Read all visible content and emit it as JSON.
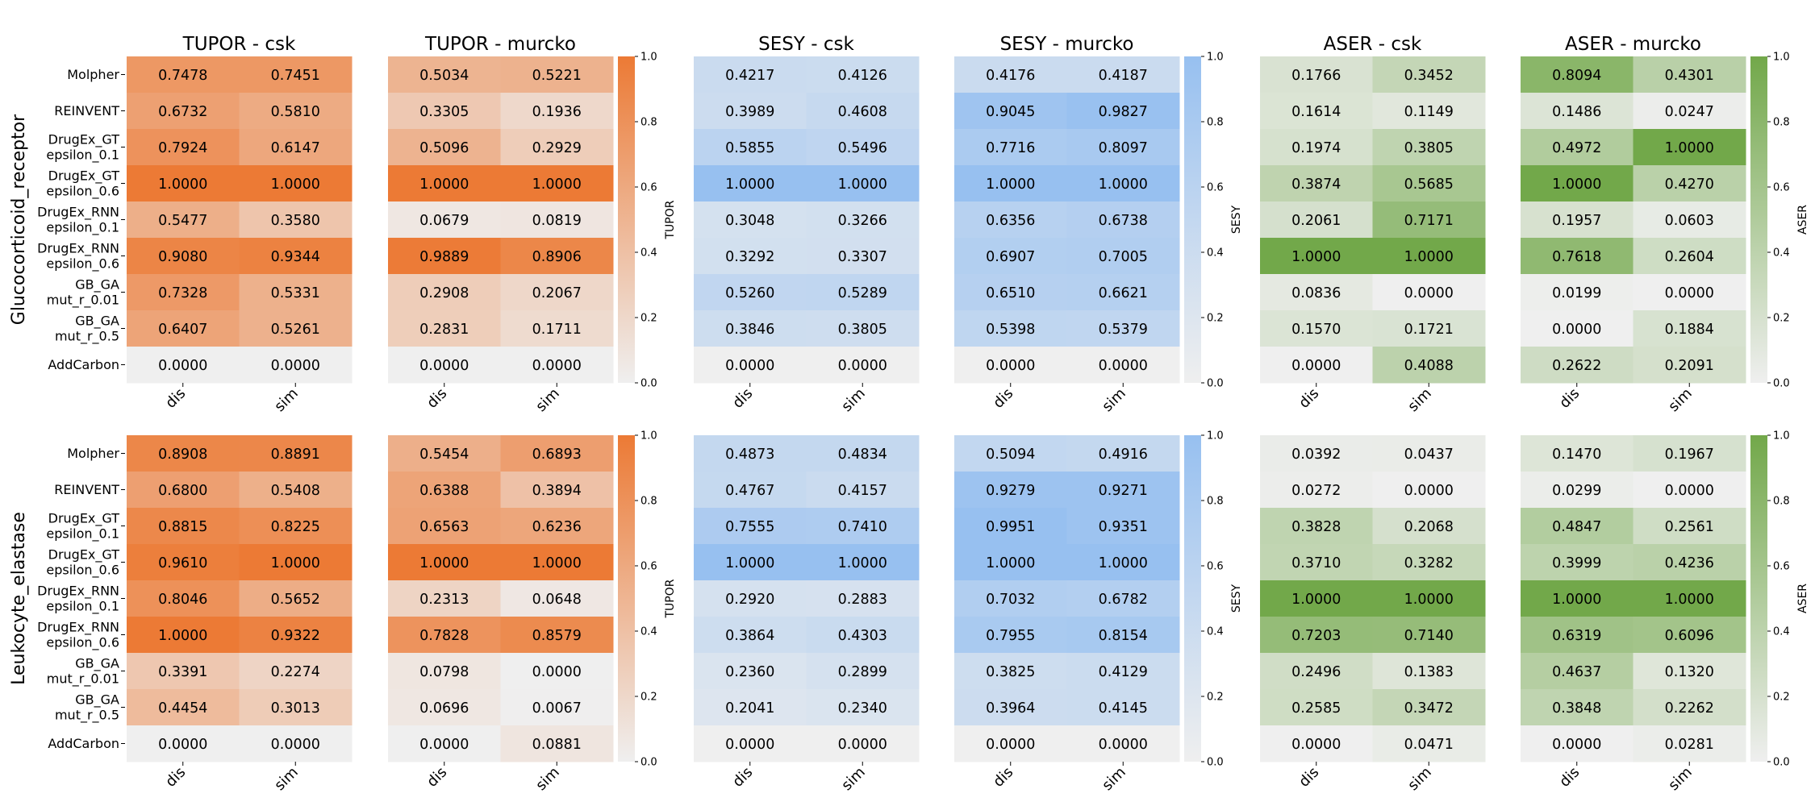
{
  "colors": {
    "low": "#efefef",
    "TUPOR": "#ec7a35",
    "SESY": "#97c0f0",
    "ASER": "#72a84a"
  },
  "chart_data": {
    "type": "heatmap",
    "rows": [
      "Molpher",
      "REINVENT",
      "DrugEx_GT\nepsilon_0.1",
      "DrugEx_GT\nepsilon_0.6",
      "DrugEx_RNN\nepsilon_0.1",
      "DrugEx_RNN\nepsilon_0.6",
      "GB_GA\nmut_r_0.01",
      "GB_GA\nmut_r_0.5",
      "AddCarbon"
    ],
    "columns": [
      "dis",
      "sim"
    ],
    "colorbar_ticks": [
      "0.0",
      "0.2",
      "0.4",
      "0.6",
      "0.8",
      "1.0"
    ],
    "vrange": [
      0,
      1
    ],
    "targets": [
      {
        "name": "Glucocorticoid_receptor",
        "panels": [
          {
            "title": "TUPOR - csk",
            "metric": "TUPOR",
            "values": [
              [
                0.7478,
                0.7451
              ],
              [
                0.6732,
                0.581
              ],
              [
                0.7924,
                0.6147
              ],
              [
                1.0,
                1.0
              ],
              [
                0.5477,
                0.358
              ],
              [
                0.908,
                0.9344
              ],
              [
                0.7328,
                0.5331
              ],
              [
                0.6407,
                0.5261
              ],
              [
                0.0,
                0.0
              ]
            ]
          },
          {
            "title": "TUPOR - murcko",
            "metric": "TUPOR",
            "colorbar_label": "TUPOR",
            "values": [
              [
                0.5034,
                0.5221
              ],
              [
                0.3305,
                0.1936
              ],
              [
                0.5096,
                0.2929
              ],
              [
                1.0,
                1.0
              ],
              [
                0.0679,
                0.0819
              ],
              [
                0.9889,
                0.8906
              ],
              [
                0.2908,
                0.2067
              ],
              [
                0.2831,
                0.1711
              ],
              [
                0.0,
                0.0
              ]
            ]
          },
          {
            "title": "SESY - csk",
            "metric": "SESY",
            "values": [
              [
                0.4217,
                0.4126
              ],
              [
                0.3989,
                0.4608
              ],
              [
                0.5855,
                0.5496
              ],
              [
                1.0,
                1.0
              ],
              [
                0.3048,
                0.3266
              ],
              [
                0.3292,
                0.3307
              ],
              [
                0.526,
                0.5289
              ],
              [
                0.3846,
                0.3805
              ],
              [
                0.0,
                0.0
              ]
            ]
          },
          {
            "title": "SESY - murcko",
            "metric": "SESY",
            "colorbar_label": "SESY",
            "values": [
              [
                0.4176,
                0.4187
              ],
              [
                0.9045,
                0.9827
              ],
              [
                0.7716,
                0.8097
              ],
              [
                1.0,
                1.0
              ],
              [
                0.6356,
                0.6738
              ],
              [
                0.6907,
                0.7005
              ],
              [
                0.651,
                0.6621
              ],
              [
                0.5398,
                0.5379
              ],
              [
                0.0,
                0.0
              ]
            ]
          },
          {
            "title": "ASER - csk",
            "metric": "ASER",
            "values": [
              [
                0.1766,
                0.3452
              ],
              [
                0.1614,
                0.1149
              ],
              [
                0.1974,
                0.3805
              ],
              [
                0.3874,
                0.5685
              ],
              [
                0.2061,
                0.7171
              ],
              [
                1.0,
                1.0
              ],
              [
                0.0836,
                0.0
              ],
              [
                0.157,
                0.1721
              ],
              [
                0.0,
                0.4088
              ]
            ]
          },
          {
            "title": "ASER - murcko",
            "metric": "ASER",
            "colorbar_label": "ASER",
            "values": [
              [
                0.8094,
                0.4301
              ],
              [
                0.1486,
                0.0247
              ],
              [
                0.4972,
                1.0
              ],
              [
                1.0,
                0.427
              ],
              [
                0.1957,
                0.0603
              ],
              [
                0.7618,
                0.2604
              ],
              [
                0.0199,
                0.0
              ],
              [
                0.0,
                0.1884
              ],
              [
                0.2622,
                0.2091
              ]
            ]
          }
        ]
      },
      {
        "name": "Leukocyte_elastase",
        "panels": [
          {
            "title": "",
            "metric": "TUPOR",
            "values": [
              [
                0.8908,
                0.8891
              ],
              [
                0.68,
                0.5408
              ],
              [
                0.8815,
                0.8225
              ],
              [
                0.961,
                1.0
              ],
              [
                0.8046,
                0.5652
              ],
              [
                1.0,
                0.9322
              ],
              [
                0.3391,
                0.2274
              ],
              [
                0.4454,
                0.3013
              ],
              [
                0.0,
                0.0
              ]
            ]
          },
          {
            "title": "",
            "metric": "TUPOR",
            "colorbar_label": "TUPOR",
            "values": [
              [
                0.5454,
                0.6893
              ],
              [
                0.6388,
                0.3894
              ],
              [
                0.6563,
                0.6236
              ],
              [
                1.0,
                1.0
              ],
              [
                0.2313,
                0.0648
              ],
              [
                0.7828,
                0.8579
              ],
              [
                0.0798,
                0.0
              ],
              [
                0.0696,
                0.0067
              ],
              [
                0.0,
                0.0881
              ]
            ]
          },
          {
            "title": "",
            "metric": "SESY",
            "values": [
              [
                0.4873,
                0.4834
              ],
              [
                0.4767,
                0.4157
              ],
              [
                0.7555,
                0.741
              ],
              [
                1.0,
                1.0
              ],
              [
                0.292,
                0.2883
              ],
              [
                0.3864,
                0.4303
              ],
              [
                0.236,
                0.2899
              ],
              [
                0.2041,
                0.234
              ],
              [
                0.0,
                0.0
              ]
            ]
          },
          {
            "title": "",
            "metric": "SESY",
            "colorbar_label": "SESY",
            "values": [
              [
                0.5094,
                0.4916
              ],
              [
                0.9279,
                0.9271
              ],
              [
                0.9951,
                0.9351
              ],
              [
                1.0,
                1.0
              ],
              [
                0.7032,
                0.6782
              ],
              [
                0.7955,
                0.8154
              ],
              [
                0.3825,
                0.4129
              ],
              [
                0.3964,
                0.4145
              ],
              [
                0.0,
                0.0
              ]
            ]
          },
          {
            "title": "",
            "metric": "ASER",
            "values": [
              [
                0.0392,
                0.0437
              ],
              [
                0.0272,
                0.0
              ],
              [
                0.3828,
                0.2068
              ],
              [
                0.371,
                0.3282
              ],
              [
                1.0,
                1.0
              ],
              [
                0.7203,
                0.714
              ],
              [
                0.2496,
                0.1383
              ],
              [
                0.2585,
                0.3472
              ],
              [
                0.0,
                0.0471
              ]
            ]
          },
          {
            "title": "",
            "metric": "ASER",
            "colorbar_label": "ASER",
            "values": [
              [
                0.147,
                0.1967
              ],
              [
                0.0299,
                0.0
              ],
              [
                0.4847,
                0.2561
              ],
              [
                0.3999,
                0.4236
              ],
              [
                1.0,
                1.0
              ],
              [
                0.6319,
                0.6096
              ],
              [
                0.4637,
                0.132
              ],
              [
                0.3848,
                0.2262
              ],
              [
                0.0,
                0.0281
              ]
            ]
          }
        ]
      }
    ]
  }
}
